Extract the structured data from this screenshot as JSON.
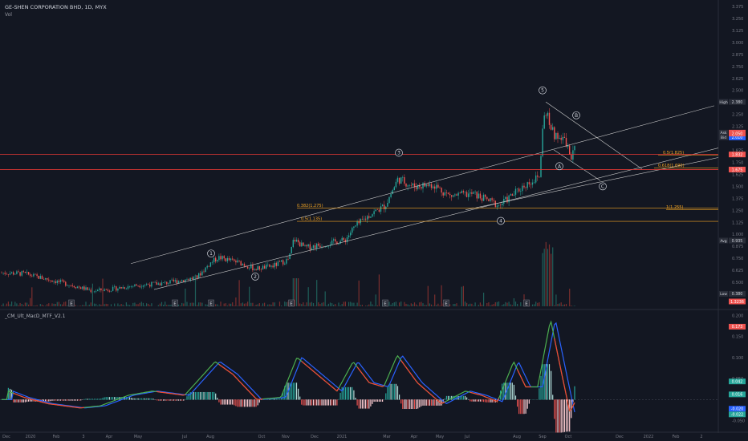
{
  "header": {
    "title": "GE-SHEN CORPORATION BHD, 1D, MYX",
    "volume_label": "Vol",
    "indicator_label": "_CM_Ult_MacD_MTF_V2.1"
  },
  "colors": {
    "background": "#131722",
    "grid": "#1e222d",
    "up_candle": "#26a69a",
    "down_candle": "#ef5350",
    "channel": "#c8c8c8",
    "red_line": "#e53935",
    "fib": "#f5a623",
    "macd_green": "#4caf50",
    "macd_red": "#f44336",
    "macd_blue": "#2962ff"
  },
  "chart_data": {
    "type": "candlestick",
    "price_axis": {
      "ticks": [
        "2.375",
        "2.250",
        "2.125",
        "2.000",
        "1.875",
        "1.750",
        "1.625",
        "1.500",
        "1.375",
        "1.250",
        "1.125",
        "1.000",
        "0.875",
        "0.750",
        "0.625",
        "0.500",
        "0.375"
      ],
      "ticks_extra": [
        "3.375",
        "3.250",
        "3.125",
        "3.000",
        "2.875",
        "2.750",
        "2.625",
        "2.500"
      ],
      "range": [
        0.25,
        3.4
      ]
    },
    "price_markers": [
      {
        "label": "High",
        "value": "2.380",
        "color": "#2a2e39",
        "text": "#d1d4dc"
      },
      {
        "label": "Ask",
        "value": "2.060",
        "color": "#ef5350",
        "text": "#ffffff"
      },
      {
        "label": "Bid",
        "value": "2.010",
        "color": "#2962ff",
        "text": "#ffffff"
      },
      {
        "label": "",
        "value": "2.050",
        "color": "#ef5350",
        "text": "#ffffff"
      },
      {
        "label": "",
        "value": "1.832",
        "color": "#ef5350",
        "text": "#ffffff"
      },
      {
        "label": "",
        "value": "1.675",
        "color": "#ef5350",
        "text": "#ffffff"
      },
      {
        "label": "Avg",
        "value": "0.935",
        "color": "#2a2e39",
        "text": "#d1d4dc"
      },
      {
        "label": "Low",
        "value": "0.380",
        "color": "#2a2e39",
        "text": "#d1d4dc"
      },
      {
        "label": "",
        "value": "1.3236",
        "color": "#ef5350",
        "text": "#ffffff"
      }
    ],
    "x_axis": {
      "labels": [
        "Dec",
        "2020",
        "Feb",
        "3",
        "Apr",
        "May",
        "Jul",
        "Aug",
        "Oct",
        "Nov",
        "Dec",
        "2021",
        "Mar",
        "Apr",
        "May",
        "Jul",
        "Aug",
        "Sep",
        "Oct",
        "Dec",
        "2022",
        "Feb",
        "2"
      ]
    },
    "waves": [
      "1",
      "2",
      "3",
      "4",
      "5",
      "A",
      "B",
      "C"
    ],
    "horizontal_lines": [
      {
        "name": "resistance",
        "value": 1.832
      },
      {
        "name": "support",
        "value": 1.675
      }
    ],
    "fib_levels": [
      {
        "label": "0.382(1.275)",
        "value": 1.275
      },
      {
        "label": "0.5(1.135)",
        "value": 1.135
      },
      {
        "label": "0.5(1.825)",
        "value": 1.825
      },
      {
        "label": "0.618(1.690)",
        "value": 1.69
      },
      {
        "label": "1(1.255)",
        "value": 1.255
      }
    ],
    "earnings_markers": [
      "E",
      "E",
      "E",
      "E",
      "E",
      "E",
      "E"
    ],
    "macd_axis": {
      "ticks": [
        "0.200",
        "0.150",
        "0.100",
        "0.050",
        "-0.050"
      ],
      "range": [
        -0.07,
        0.21
      ],
      "markers": [
        {
          "value": "0.173",
          "color": "#ef5350"
        },
        {
          "value": "0.042",
          "color": "#26a69a"
        },
        {
          "value": "0.016",
          "color": "#26a69a"
        },
        {
          "value": "-0.020",
          "color": "#2962ff"
        },
        {
          "value": "-0.022",
          "color": "#26a69a"
        }
      ]
    }
  }
}
